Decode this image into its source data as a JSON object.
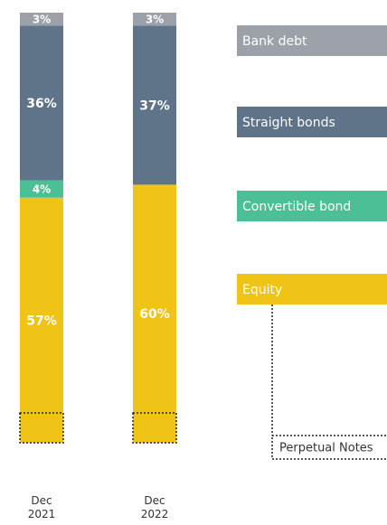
{
  "chart_data": {
    "type": "stacked_bar",
    "categories": [
      "Dec 2021",
      "Dec 2022"
    ],
    "series": [
      {
        "name": "Equity",
        "color": "#efc416",
        "values": [
          57,
          60
        ],
        "value_labels": [
          "57%",
          "60%"
        ]
      },
      {
        "name": "Convertible bond",
        "color": "#4dbf96",
        "values": [
          4,
          null
        ],
        "value_labels": [
          "4%",
          null
        ]
      },
      {
        "name": "Straight bonds",
        "color": "#5f7389",
        "values": [
          36,
          37
        ],
        "value_labels": [
          "36%",
          "37%"
        ]
      },
      {
        "name": "Bank debt",
        "color": "#9ca0a9",
        "values": [
          3,
          3
        ],
        "value_labels": [
          "3%",
          "3%"
        ]
      }
    ],
    "ylim": [
      0,
      100
    ],
    "annotation": "Perpetual Notes"
  }
}
